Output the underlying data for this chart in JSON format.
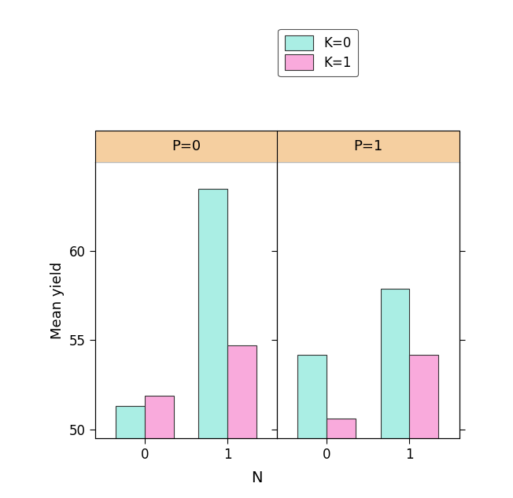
{
  "panels": [
    {
      "label": "P=0",
      "k0_values": [
        51.3,
        63.5
      ],
      "k1_values": [
        51.9,
        54.7
      ]
    },
    {
      "label": "P=1",
      "k0_values": [
        54.2,
        57.9
      ],
      "k1_values": [
        50.6,
        54.2
      ]
    }
  ],
  "color_k0": "#AAEEE4",
  "color_k1": "#F9AADC",
  "bar_edge_color": "#333333",
  "bar_width": 0.35,
  "ylim": [
    49.5,
    65.0
  ],
  "yticks": [
    50,
    55,
    60
  ],
  "xlabel": "N",
  "ylabel": "Mean yield",
  "legend_labels": [
    "K=0",
    "K=1"
  ],
  "panel_header_color": "#F5CFA0",
  "panel_header_edge": "#BBBBBB",
  "background_color": "#ffffff",
  "axis_fontsize": 13,
  "tick_fontsize": 12,
  "legend_fontsize": 12,
  "xlabel_fontsize": 14
}
